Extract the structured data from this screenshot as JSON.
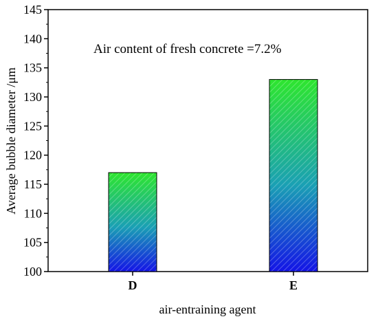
{
  "chart_data": {
    "type": "bar",
    "categories": [
      "D",
      "E"
    ],
    "values": [
      117,
      133
    ],
    "xlabel": "air-entraining agent",
    "ylabel": "Average bubble diameter /μm",
    "ylim": [
      100,
      145
    ],
    "yticks": [
      100,
      105,
      110,
      115,
      120,
      125,
      130,
      135,
      140,
      145
    ],
    "annotation": "Air content of fresh concrete =7.2%",
    "grid": false,
    "bar_fill": "gradient green (top) to blue (bottom) with diagonal hatch",
    "colors": {
      "top": "#2ee62e",
      "mid": "#1aa0b4",
      "bottom": "#1414e6"
    }
  }
}
